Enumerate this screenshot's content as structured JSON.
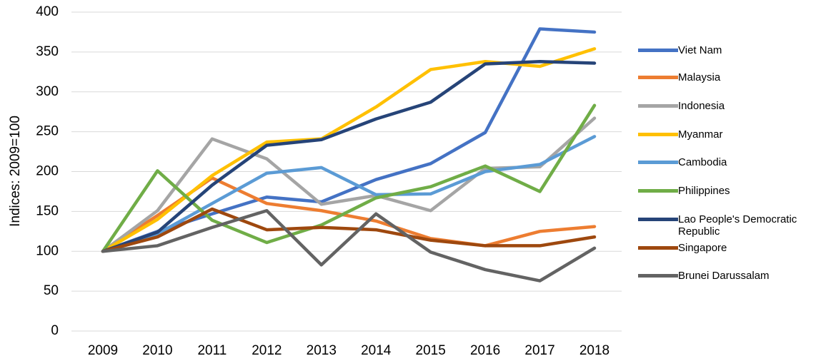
{
  "chart_data": {
    "type": "line",
    "y_label": "Indices: 2009=100",
    "categories": [
      "2009",
      "2010",
      "2011",
      "2012",
      "2013",
      "2014",
      "2015",
      "2016",
      "2017",
      "2018"
    ],
    "ylim": [
      0,
      400
    ],
    "yticks": [
      0,
      50,
      100,
      150,
      200,
      250,
      300,
      350,
      400
    ],
    "grid": true,
    "legend": "right",
    "series": [
      {
        "name": "Viet Nam",
        "color": "#4472c4",
        "values": [
          100,
          125,
          147,
          168,
          162,
          190,
          210,
          249,
          379,
          375
        ]
      },
      {
        "name": "Malaysia",
        "color": "#ed7d31",
        "values": [
          100,
          145,
          192,
          160,
          151,
          138,
          116,
          107,
          125,
          131
        ]
      },
      {
        "name": "Indonesia",
        "color": "#a5a5a5",
        "values": [
          100,
          151,
          241,
          216,
          159,
          170,
          151,
          204,
          206,
          267
        ]
      },
      {
        "name": "Myanmar",
        "color": "#ffc000",
        "values": [
          100,
          140,
          195,
          237,
          241,
          281,
          328,
          338,
          332,
          354
        ]
      },
      {
        "name": "Cambodia",
        "color": "#5b9bd5",
        "values": [
          100,
          122,
          160,
          198,
          205,
          171,
          172,
          200,
          209,
          244
        ]
      },
      {
        "name": "Philippines",
        "color": "#70ad47",
        "values": [
          100,
          201,
          139,
          111,
          133,
          167,
          181,
          207,
          175,
          283
        ]
      },
      {
        "name": "Lao People's Democratic Republic",
        "color": "#264478",
        "values": [
          100,
          124,
          183,
          233,
          240,
          266,
          287,
          335,
          338,
          336
        ]
      },
      {
        "name": "Singapore",
        "color": "#9e480e",
        "values": [
          100,
          118,
          153,
          127,
          130,
          127,
          114,
          107,
          107,
          118
        ]
      },
      {
        "name": "Brunei Darussalam",
        "color": "#636363",
        "values": [
          100,
          107,
          130,
          151,
          83,
          147,
          99,
          77,
          63,
          104
        ]
      }
    ]
  }
}
